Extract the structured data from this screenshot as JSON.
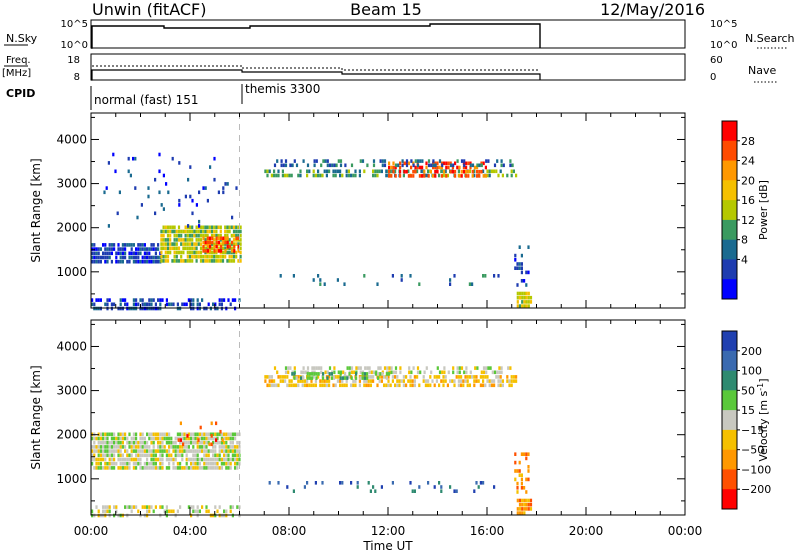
{
  "header": {
    "station": "Unwin (fitACF)",
    "beam": "Beam 15",
    "date": "12/May/2016"
  },
  "top_panels": {
    "nsky_label": "N.Sky",
    "nsky_ticks": [
      "10^5",
      "10^0"
    ],
    "nsearch_label": "N.Search",
    "freq_label_1": "Freq.",
    "freq_label_2": "[MHz]",
    "freq_ticks": [
      "18",
      "8"
    ],
    "nave_ticks": [
      "60",
      "0"
    ],
    "nave_label": "Nave",
    "cpid_label": "CPID",
    "cpid_modes": [
      {
        "label": "normal (fast) 151",
        "start_hour": 0
      },
      {
        "label": "themis 3300",
        "start_hour": 6
      }
    ]
  },
  "xaxis": {
    "label": "Time UT",
    "ticks": [
      "00:00",
      "04:00",
      "08:00",
      "12:00",
      "16:00",
      "20:00",
      "00:00"
    ],
    "tick_hours": [
      0,
      4,
      8,
      12,
      16,
      20,
      24
    ]
  },
  "chart_data": [
    {
      "type": "heatmap",
      "name": "Power",
      "ylabel": "Slant Range [km]",
      "yticks": [
        1000,
        2000,
        3000,
        4000
      ],
      "ylim": [
        180,
        4600
      ],
      "xlim_hours": [
        0,
        24
      ],
      "colorbar_label": "Power [dB]",
      "colorbar_ticks": [
        "28",
        "24",
        "20",
        "16",
        "12",
        "8",
        "4"
      ],
      "colorbar_colors": [
        "#ff0000",
        "#ff4b00",
        "#ff9800",
        "#f5c000",
        "#b5c800",
        "#3a9a60",
        "#1a6a90",
        "#1e3cb0",
        "#0000ff"
      ],
      "regions": [
        {
          "t0": 0.0,
          "t1": 2.8,
          "r0": 1250,
          "r1": 1650,
          "level": 1,
          "density": 0.85
        },
        {
          "t0": 2.8,
          "t1": 6.0,
          "r0": 1250,
          "r1": 2050,
          "level": 4,
          "density": 0.85
        },
        {
          "t0": 4.5,
          "t1": 6.0,
          "r0": 1450,
          "r1": 1800,
          "level": 7,
          "density": 0.7
        },
        {
          "t0": 0.0,
          "t1": 6.0,
          "r0": 200,
          "r1": 400,
          "level": 1,
          "density": 0.55
        },
        {
          "t0": 7.0,
          "t1": 17.2,
          "r0": 3150,
          "r1": 3320,
          "level": 3,
          "density": 0.6
        },
        {
          "t0": 12.0,
          "t1": 16.0,
          "r0": 3150,
          "r1": 3500,
          "level": 7,
          "density": 0.6
        },
        {
          "t0": 7.3,
          "t1": 17.0,
          "r0": 3450,
          "r1": 3550,
          "level": 2,
          "density": 0.35
        },
        {
          "t0": 17.2,
          "t1": 17.8,
          "r0": 200,
          "r1": 550,
          "level": 4,
          "density": 0.9
        },
        {
          "t0": 17.1,
          "t1": 17.7,
          "r0": 700,
          "r1": 1600,
          "level": 1,
          "density": 0.35
        },
        {
          "t0": 0.5,
          "t1": 6.0,
          "r0": 2000,
          "r1": 3700,
          "level": 1,
          "density": 0.04
        },
        {
          "t0": 7.0,
          "t1": 16.5,
          "r0": 700,
          "r1": 950,
          "level": 2,
          "density": 0.08
        }
      ]
    },
    {
      "type": "heatmap",
      "name": "Velocity",
      "ylabel": "Slant Range [km]",
      "yticks": [
        1000,
        2000,
        3000,
        4000
      ],
      "ylim": [
        180,
        4600
      ],
      "xlim_hours": [
        0,
        24
      ],
      "colorbar_label": "Velocity [m s^-1]",
      "colorbar_ticks": [
        "200",
        "100",
        "50",
        "15",
        "-15",
        "-50",
        "-100",
        "-200"
      ],
      "colorbar_colors": [
        "#2040b0",
        "#3a6ab0",
        "#2e8a70",
        "#5ac83a",
        "#c8c8c0",
        "#f5c000",
        "#ff9800",
        "#ff5000",
        "#ff0000"
      ],
      "regions": [
        {
          "t0": 0.0,
          "t1": 6.0,
          "r0": 1250,
          "r1": 2050,
          "level": 4,
          "density": 0.85
        },
        {
          "t0": 0.0,
          "t1": 6.0,
          "r0": 200,
          "r1": 400,
          "level": 4,
          "density": 0.5
        },
        {
          "t0": 7.0,
          "t1": 17.2,
          "r0": 3150,
          "r1": 3350,
          "level": 5,
          "density": 0.7
        },
        {
          "t0": 7.3,
          "t1": 17.0,
          "r0": 3450,
          "r1": 3550,
          "level": 4,
          "density": 0.5
        },
        {
          "t0": 8.0,
          "t1": 12.0,
          "r0": 3300,
          "r1": 3420,
          "level": 3,
          "density": 0.5
        },
        {
          "t0": 17.2,
          "t1": 17.8,
          "r0": 200,
          "r1": 550,
          "level": 6,
          "density": 0.9
        },
        {
          "t0": 3.5,
          "t1": 5.5,
          "r0": 1800,
          "r1": 2300,
          "level": 7,
          "density": 0.12
        },
        {
          "t0": 7.0,
          "t1": 16.5,
          "r0": 750,
          "r1": 950,
          "level": 1,
          "density": 0.1
        },
        {
          "t0": 17.1,
          "t1": 17.7,
          "r0": 700,
          "r1": 1600,
          "level": 6,
          "density": 0.35
        }
      ]
    }
  ]
}
